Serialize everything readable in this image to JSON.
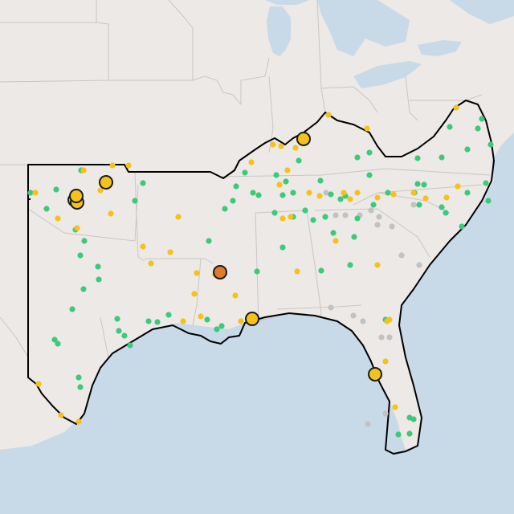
{
  "map": {
    "basemap": "light-gray-canvas",
    "colors": {
      "land": "#ece9e6",
      "water": "#c8d9e8",
      "state_border": "#c9c6c3",
      "region_outline": "#000000",
      "marker_green": "#3dc97a",
      "marker_yellow": "#f4c21a",
      "marker_gray": "#c2c2c2",
      "marker_orange": "#e07b2a",
      "marker_stroke": "#1b1b1b"
    },
    "legend": [],
    "markers": {
      "small_green": [],
      "small_yellow": [],
      "small_gray": [],
      "large_yellow": [],
      "large_orange": []
    }
  }
}
